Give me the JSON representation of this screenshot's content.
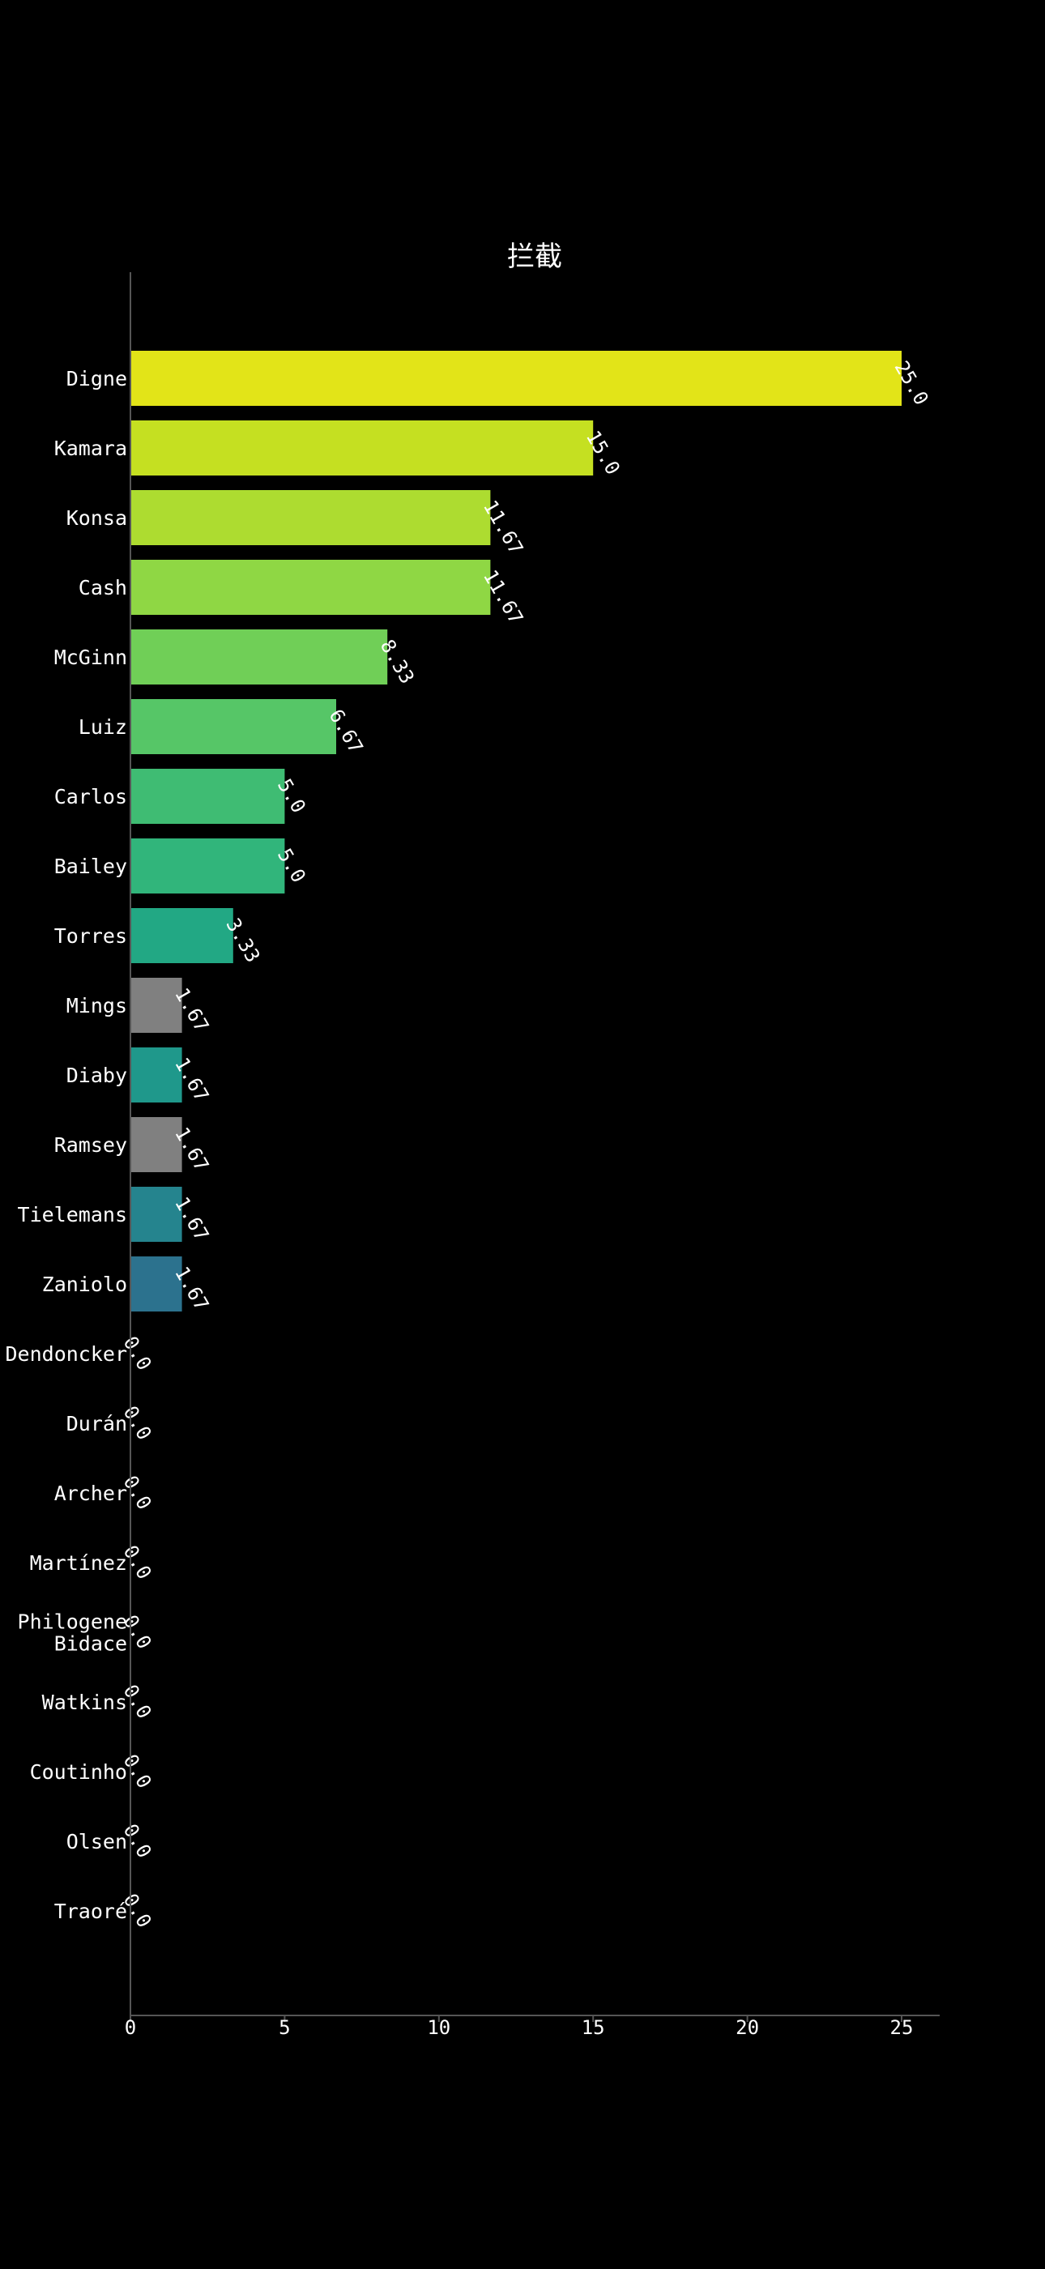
{
  "chart_data": {
    "type": "bar",
    "orientation": "horizontal",
    "title": "拦截",
    "xlabel": "",
    "ylabel": "",
    "xlim": [
      0,
      26.25
    ],
    "xticks": [
      0,
      5,
      10,
      15,
      20,
      25
    ],
    "grid": false,
    "categories": [
      "Digne",
      "Kamara",
      "Konsa",
      "Cash",
      "McGinn",
      "Luiz",
      "Carlos",
      "Bailey",
      "Torres",
      "Mings",
      "Diaby",
      "Ramsey",
      "Tielemans",
      "Zaniolo",
      "Dendoncker",
      "Durán",
      "Archer",
      "Martínez",
      "Philogene\nBidace",
      "Watkins",
      "Coutinho",
      "Olsen",
      "Traoré"
    ],
    "values": [
      25.0,
      15.0,
      11.67,
      11.67,
      8.33,
      6.67,
      5.0,
      5.0,
      3.33,
      1.67,
      1.67,
      1.67,
      1.67,
      1.67,
      0.0,
      0.0,
      0.0,
      0.0,
      0.0,
      0.0,
      0.0,
      0.0,
      0.0
    ],
    "value_labels": [
      "25.0",
      "15.0",
      "11.67",
      "11.67",
      "8.33",
      "6.67",
      "5.0",
      "5.0",
      "3.33",
      "1.67",
      "1.67",
      "1.67",
      "1.67",
      "1.67",
      "0.0",
      "0.0",
      "0.0",
      "0.0",
      "0.0",
      "0.0",
      "0.0",
      "0.0",
      "0.0"
    ],
    "colors": [
      "#e2e418",
      "#c5e021",
      "#addc30",
      "#8fd744",
      "#70cf57",
      "#56c667",
      "#3fbc73",
      "#31b57b",
      "#22a884",
      "#808080",
      "#1f988b",
      "#808080",
      "#25848e",
      "#2c728e",
      "#33638d",
      "#3a538b",
      "#404387",
      "#46337e",
      "#482172",
      "#482475",
      "#481467",
      "#440154",
      "#440154"
    ]
  }
}
